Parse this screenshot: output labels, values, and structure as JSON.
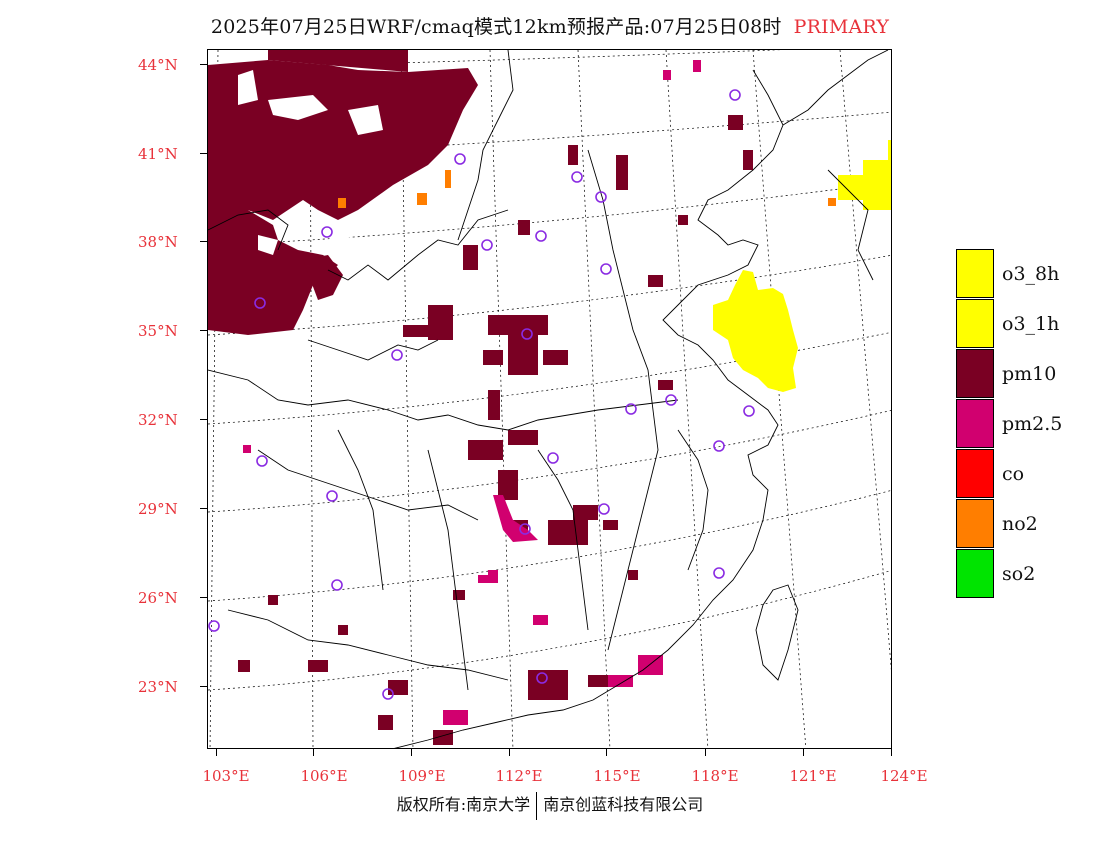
{
  "title": {
    "main": "2025年07月25日WRF/cmaq模式12km预报产品:07月25日08时",
    "tag": "PRIMARY"
  },
  "lat_labels": [
    "44°N",
    "41°N",
    "38°N",
    "35°N",
    "32°N",
    "29°N",
    "26°N",
    "23°N"
  ],
  "lon_labels": [
    "103°E",
    "106°E",
    "109°E",
    "112°E",
    "115°E",
    "118°E",
    "121°E",
    "124°E"
  ],
  "legend": [
    {
      "label": "o3_8h",
      "color": "#ffff00"
    },
    {
      "label": "o3_1h",
      "color": "#ffff00"
    },
    {
      "label": "pm10",
      "color": "#7a0023"
    },
    {
      "label": "pm2.5",
      "color": "#d1006f"
    },
    {
      "label": "co",
      "color": "#ff0000"
    },
    {
      "label": "no2",
      "color": "#ff7e00"
    },
    {
      "label": "so2",
      "color": "#00e400"
    }
  ],
  "footer": {
    "left": "版权所有:南京大学",
    "right": "南京创蓝科技有限公司"
  },
  "colors": {
    "pm10": "#7a0023",
    "pm25": "#d1006f",
    "o3": "#ffff00",
    "no2": "#ff7e00",
    "station": "#8a2be2",
    "label_red": "#e8323a"
  }
}
